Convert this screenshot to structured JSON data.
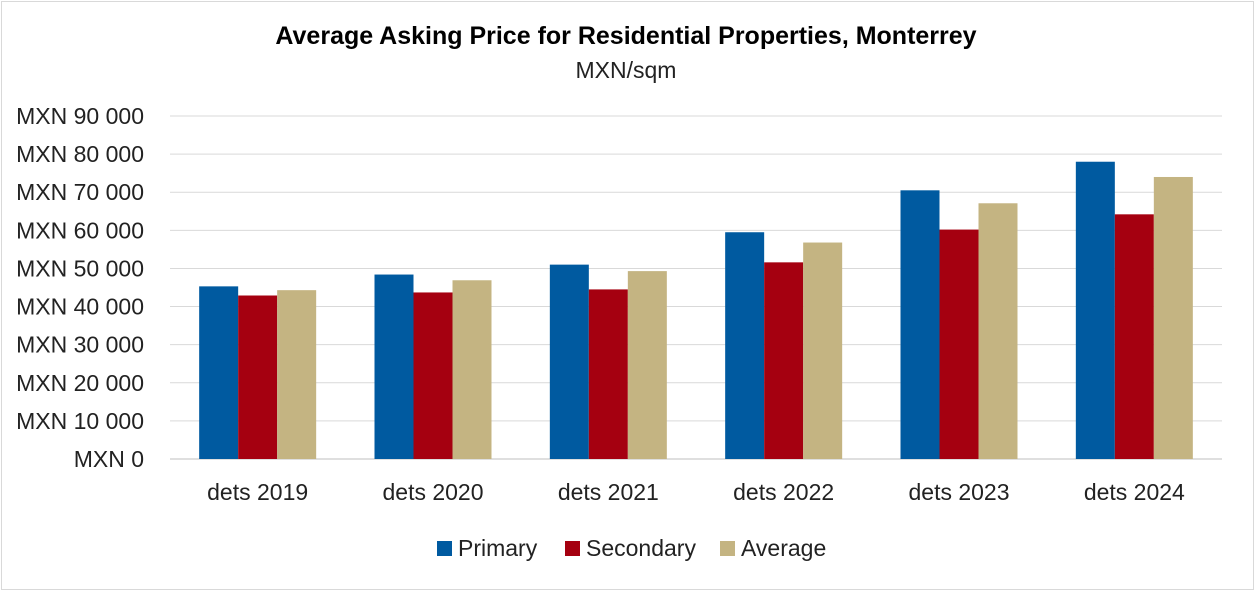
{
  "chart_data": {
    "type": "bar",
    "title": "Average Asking Price for Residential Properties, Monterrey",
    "subtitle": "MXN/sqm",
    "xlabel": "",
    "ylabel": "",
    "categories": [
      "dets 2019",
      "dets 2020",
      "dets 2021",
      "dets 2022",
      "dets 2023",
      "dets 2024"
    ],
    "series": [
      {
        "name": "Primary",
        "color": "#005aa0",
        "values": [
          45300,
          48400,
          51000,
          59500,
          70500,
          78000
        ]
      },
      {
        "name": "Secondary",
        "color": "#a50010",
        "values": [
          42900,
          43700,
          44500,
          51600,
          60200,
          64200
        ]
      },
      {
        "name": "Average",
        "color": "#c4b482",
        "values": [
          44300,
          46900,
          49300,
          56800,
          67100,
          74000
        ]
      }
    ],
    "ylim": [
      0,
      90000
    ],
    "yticks": [
      0,
      10000,
      20000,
      30000,
      40000,
      50000,
      60000,
      70000,
      80000,
      90000
    ],
    "ytick_labels": [
      "MXN 0",
      "MXN 10 000",
      "MXN 20 000",
      "MXN 30 000",
      "MXN 40 000",
      "MXN 50 000",
      "MXN 60 000",
      "MXN 70 000",
      "MXN 80 000",
      "MXN 90 000"
    ],
    "grid": true,
    "legend_position": "bottom-center"
  }
}
